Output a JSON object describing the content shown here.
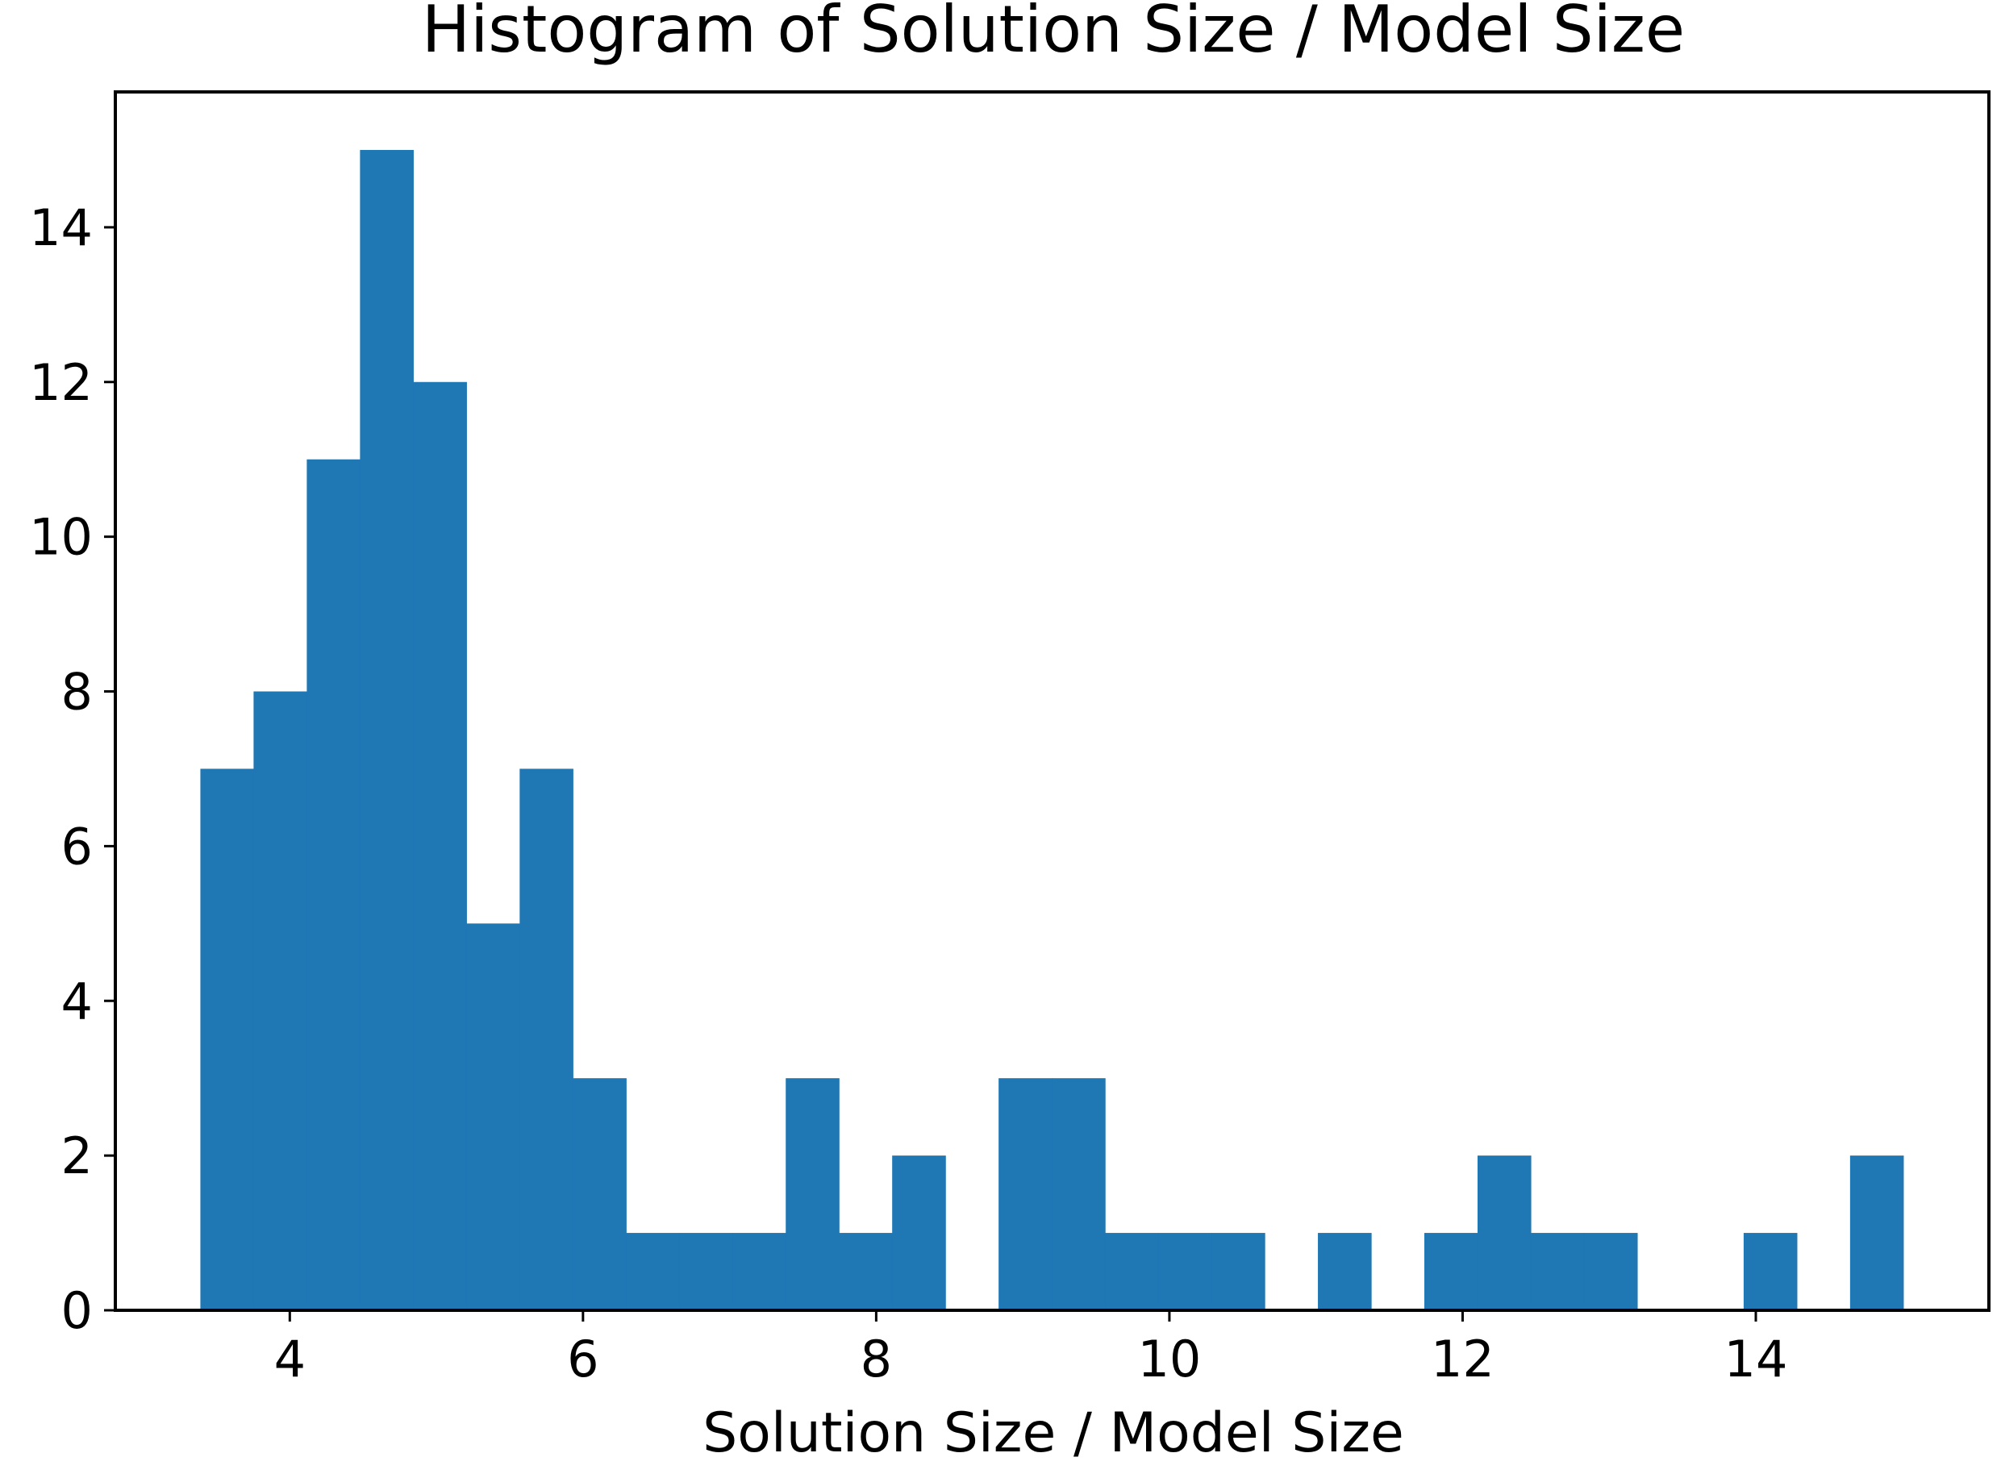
{
  "chart_data": {
    "type": "bar",
    "title": "Histogram of Solution Size / Model Size",
    "xlabel": "Solution Size / Model Size",
    "ylabel": "",
    "bin_edges": [
      3.39,
      3.753,
      4.116,
      4.479,
      4.842,
      5.205,
      5.568,
      5.931,
      6.294,
      6.657,
      7.02,
      7.383,
      7.746,
      8.109,
      8.472,
      8.835,
      9.198,
      9.561,
      9.924,
      10.287,
      10.65,
      11.013,
      11.376,
      11.739,
      12.102,
      12.465,
      12.828,
      13.191,
      13.554,
      13.917,
      14.28,
      14.643,
      15.006
    ],
    "values": [
      7,
      8,
      11,
      15,
      12,
      5,
      7,
      3,
      1,
      1,
      1,
      3,
      1,
      2,
      0,
      3,
      3,
      1,
      1,
      1,
      0,
      1,
      0,
      1,
      2,
      1,
      1,
      0,
      0,
      1,
      0,
      2
    ],
    "xlim": [
      2.81,
      15.59
    ],
    "ylim": [
      0,
      15.75
    ],
    "xticks": [
      4,
      6,
      8,
      10,
      12,
      14
    ],
    "yticks": [
      0,
      2,
      4,
      6,
      8,
      10,
      12,
      14
    ],
    "bar_color": "#1f77b4",
    "grid": false,
    "legend": "none"
  }
}
